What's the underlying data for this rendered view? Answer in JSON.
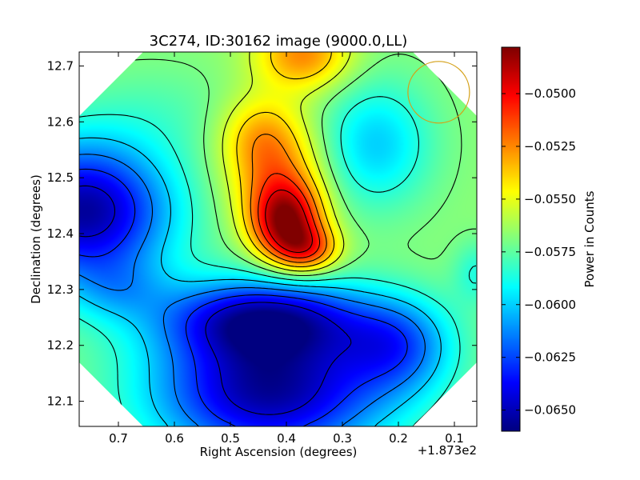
{
  "chart_data": {
    "type": "heatmap",
    "title": "3C274, ID:30162 image (9000.0,LL)",
    "xlabel": "Right Ascension (degrees)",
    "ylabel": "Declination (degrees)",
    "x_offset_label": "+1.873e2",
    "colorbar_label": "Power in Counts",
    "xlim": [
      0.77,
      0.06
    ],
    "ylim": [
      12.055,
      12.725
    ],
    "x_ticks": [
      0.7,
      0.6,
      0.5,
      0.4,
      0.3,
      0.2,
      0.1
    ],
    "x_tick_labels": [
      "0.7",
      "0.6",
      "0.5",
      "0.4",
      "0.3",
      "0.2",
      "0.1"
    ],
    "y_ticks": [
      12.1,
      12.2,
      12.3,
      12.4,
      12.5,
      12.6,
      12.7
    ],
    "y_tick_labels": [
      "12.1",
      "12.2",
      "12.3",
      "12.4",
      "12.5",
      "12.6",
      "12.7"
    ],
    "colorbar_range": [
      -0.066,
      -0.0478
    ],
    "colorbar_ticks": [
      -0.05,
      -0.0525,
      -0.055,
      -0.0575,
      -0.06,
      -0.0625,
      -0.065
    ],
    "colorbar_tick_labels": [
      "−0.0500",
      "−0.0525",
      "−0.0550",
      "−0.0575",
      "−0.0600",
      "−0.0625",
      "−0.0650"
    ],
    "colormap": "jet",
    "contour_style": "black dashed",
    "beam_circle": {
      "ra": 0.128,
      "dec": 12.653,
      "radius_deg": 0.055,
      "color": "#d4a017"
    },
    "background_value": -0.0567,
    "features": [
      {
        "ra": 0.4,
        "dec": 12.42,
        "value": -0.049,
        "sigma_ra": 0.045,
        "sigma_dec": 0.05,
        "kind": "peak"
      },
      {
        "ra": 0.42,
        "dec": 12.51,
        "value": -0.053,
        "sigma_ra": 0.06,
        "sigma_dec": 0.07,
        "kind": "ridge"
      },
      {
        "ra": 0.36,
        "dec": 12.37,
        "value": -0.0525,
        "sigma_ra": 0.04,
        "sigma_dec": 0.03,
        "kind": "extension"
      },
      {
        "ra": 0.45,
        "dec": 12.58,
        "value": -0.0545,
        "sigma_ra": 0.05,
        "sigma_dec": 0.05,
        "kind": "ridge"
      },
      {
        "ra": 0.37,
        "dec": 12.72,
        "value": -0.0525,
        "sigma_ra": 0.06,
        "sigma_dec": 0.045,
        "kind": "top-peak"
      },
      {
        "ra": 0.76,
        "dec": 12.44,
        "value": -0.0655,
        "sigma_ra": 0.11,
        "sigma_dec": 0.09,
        "kind": "trough"
      },
      {
        "ra": 0.43,
        "dec": 12.12,
        "value": -0.0655,
        "sigma_ra": 0.15,
        "sigma_dec": 0.09,
        "kind": "trough"
      },
      {
        "ra": 0.44,
        "dec": 12.25,
        "value": -0.0635,
        "sigma_ra": 0.13,
        "sigma_dec": 0.05,
        "kind": "trough"
      },
      {
        "ra": 0.7,
        "dec": 12.3,
        "value": -0.0585,
        "sigma_ra": 0.06,
        "sigma_dec": 0.04,
        "kind": "local-bump"
      },
      {
        "ra": 0.24,
        "dec": 12.56,
        "value": -0.06,
        "sigma_ra": 0.07,
        "sigma_dec": 0.08,
        "kind": "trough"
      },
      {
        "ra": 0.62,
        "dec": 12.62,
        "value": -0.0575,
        "sigma_ra": 0.1,
        "sigma_dec": 0.06,
        "kind": "plateau"
      },
      {
        "ra": 0.06,
        "dec": 12.33,
        "value": -0.0585,
        "sigma_ra": 0.03,
        "sigma_dec": 0.04,
        "kind": "edge-dip"
      },
      {
        "ra": 0.2,
        "dec": 12.2,
        "value": -0.061,
        "sigma_ra": 0.07,
        "sigma_dec": 0.06,
        "kind": "trough"
      }
    ],
    "contour_levels": [
      -0.0495,
      -0.051,
      -0.0525,
      -0.054,
      -0.0555,
      -0.057,
      -0.0585,
      -0.06,
      -0.0615,
      -0.063,
      -0.0645
    ]
  }
}
